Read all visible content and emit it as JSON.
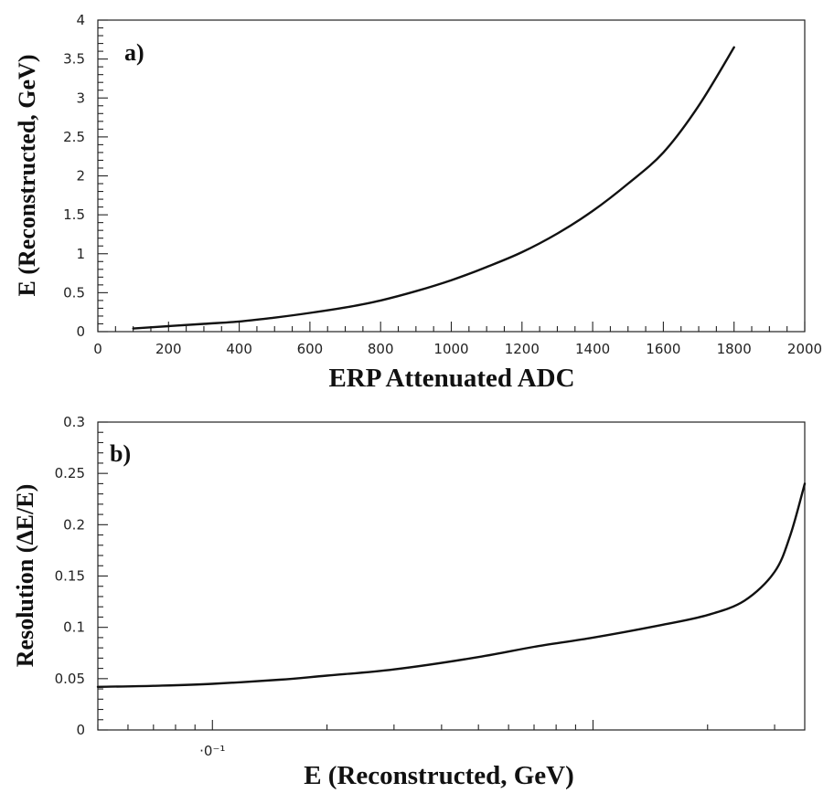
{
  "chart_data": [
    {
      "type": "line",
      "panel_label": "a)",
      "xlabel": "ERP Attenuated ADC",
      "ylabel": "E (Reconstructed, GeV)",
      "xlim": [
        0,
        2000
      ],
      "ylim": [
        0,
        4
      ],
      "xticks": [
        0,
        200,
        400,
        600,
        800,
        1000,
        1200,
        1400,
        1600,
        1800,
        2000
      ],
      "xtick_labels": [
        "0",
        "200",
        "400",
        "600",
        "800",
        "1000",
        "1200",
        "1400",
        "1600",
        "1800",
        "2000"
      ],
      "yticks": [
        0,
        0.5,
        1,
        1.5,
        2,
        2.5,
        3,
        3.5,
        4
      ],
      "ytick_labels": [
        "0",
        "0.5",
        "1",
        "1.5",
        "2",
        "2.5",
        "3",
        "3.5",
        "4"
      ],
      "grid": false,
      "series": [
        {
          "x": [
            100,
            200,
            300,
            400,
            500,
            600,
            700,
            800,
            900,
            1000,
            1100,
            1200,
            1300,
            1400,
            1500,
            1600,
            1700,
            1800
          ],
          "y": [
            0.04,
            0.07,
            0.1,
            0.13,
            0.18,
            0.24,
            0.31,
            0.4,
            0.52,
            0.66,
            0.83,
            1.02,
            1.26,
            1.55,
            1.9,
            2.3,
            2.9,
            3.65
          ]
        }
      ]
    },
    {
      "type": "line",
      "panel_label": "b)",
      "xlabel": "E (Reconstructed, GeV)",
      "ylabel": "Resolution (ΔE/E)",
      "xscale": "log",
      "xlim": [
        0.05,
        3.6
      ],
      "ylim": [
        0,
        0.3
      ],
      "xticks": [
        0.1
      ],
      "xtick_labels": [
        "·0⁻¹"
      ],
      "yticks": [
        0,
        0.05,
        0.1,
        0.15,
        0.2,
        0.25,
        0.3
      ],
      "ytick_labels": [
        "0",
        "0.05",
        "0.1",
        "0.15",
        "0.2",
        "0.25",
        "0.3"
      ],
      "grid": false,
      "series": [
        {
          "x": [
            0.05,
            0.07,
            0.1,
            0.15,
            0.2,
            0.3,
            0.5,
            0.7,
            1.0,
            1.5,
            2.0,
            2.5,
            3.0,
            3.3,
            3.6
          ],
          "y": [
            0.042,
            0.043,
            0.045,
            0.049,
            0.053,
            0.059,
            0.071,
            0.081,
            0.09,
            0.102,
            0.112,
            0.126,
            0.154,
            0.19,
            0.24
          ]
        }
      ]
    }
  ]
}
